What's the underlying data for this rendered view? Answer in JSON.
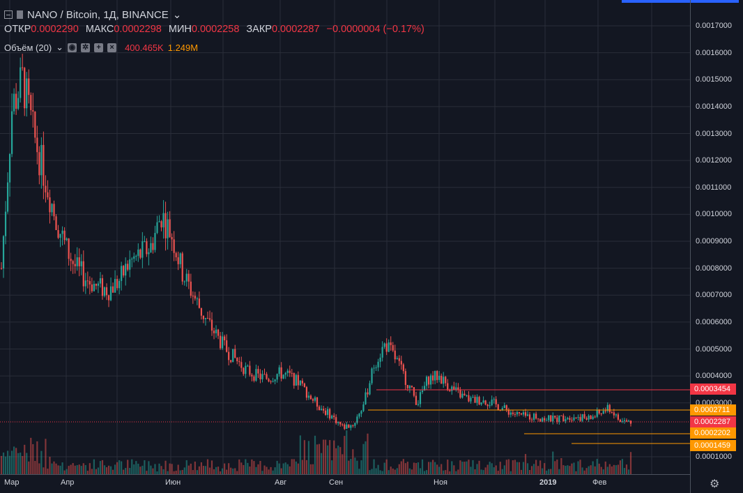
{
  "header": {
    "symbol": "NANO / Bitcoin, 1Д, BINANCE",
    "dropdown_icon": "chevron-down-icon"
  },
  "ohlc": {
    "open_label": "ОТКР",
    "open": "0.0002290",
    "high_label": "МАКС",
    "high": "0.0002298",
    "low_label": "МИН",
    "low": "0.0002258",
    "close_label": "ЗАКР",
    "close": "0.0002287",
    "change": "−0.0000004 (−0.17%)"
  },
  "volume": {
    "label": "Объём (20)",
    "value1": "400.465K",
    "value2": "1.249M"
  },
  "colors": {
    "up": "#26a69a",
    "down": "#ef5350",
    "bg": "#131722",
    "grid": "#2a2e39",
    "red_line": "#f23645",
    "orange_line": "#ff9800"
  },
  "y_axis": {
    "ticks": [
      "0.0017000",
      "0.0016000",
      "0.0015000",
      "0.0014000",
      "0.0013000",
      "0.0012000",
      "0.0011000",
      "0.0010000",
      "0.0009000",
      "0.0008000",
      "0.0007000",
      "0.0006000",
      "0.0005000",
      "0.0004000",
      "0.0003000",
      "0.0001000"
    ]
  },
  "x_axis": {
    "ticks": [
      "Мар",
      "Апр",
      "Июн",
      "Авг",
      "Сен",
      "Ноя",
      "2019",
      "Фев"
    ]
  },
  "price_labels": {
    "resistance": "0.0003454",
    "upper": "0.0002711",
    "last": "0.0002287",
    "support1": "0.0002202",
    "support2": "0.0001459"
  },
  "chart_data": {
    "type": "candlestick",
    "title": "NANO / Bitcoin, 1Д, BINANCE",
    "ylim": [
      6e-05,
      0.00177
    ],
    "y_tick_values": [
      0.0017,
      0.0016,
      0.0015,
      0.0014,
      0.0013,
      0.0012,
      0.0011,
      0.001,
      0.0009,
      0.0008,
      0.0007,
      0.0006,
      0.0005,
      0.0004,
      0.0003,
      0.0001
    ],
    "x_categories": [
      "Мар",
      "Апр",
      "Июн",
      "Авг",
      "Сен",
      "Ноя",
      "2019",
      "Фев"
    ],
    "close_path": [
      0.0008,
      0.0014,
      0.0015,
      0.0013,
      0.00115,
      0.001,
      0.00088,
      0.0008,
      0.00076,
      0.00073,
      0.00072,
      0.00075,
      0.00082,
      0.00085,
      0.00088,
      0.001,
      0.00092,
      0.00078,
      0.0007,
      0.00062,
      0.00056,
      0.0005,
      0.00046,
      0.00042,
      0.0004,
      0.00039,
      0.00041,
      0.0004,
      0.00037,
      0.00032,
      0.00028,
      0.00025,
      0.00021,
      0.00022,
      0.0003,
      0.00045,
      0.00052,
      0.00046,
      0.00038,
      0.0003,
      0.00039,
      0.0004,
      0.00036,
      0.00033,
      0.00031,
      0.00031,
      0.0003,
      0.00028,
      0.00026,
      0.00025,
      0.00025,
      0.00024,
      0.00024,
      0.00025,
      0.00025,
      0.00024,
      0.00026,
      0.00028,
      0.00023,
      0.00023
    ],
    "horizontal_levels": [
      {
        "value": 0.0003454,
        "color": "red"
      },
      {
        "value": 0.0002711,
        "color": "orange"
      },
      {
        "value": 0.0002287,
        "color": "red",
        "dotted": true
      },
      {
        "value": 0.0002202,
        "color": "orange"
      },
      {
        "value": 0.0001459,
        "color": "orange"
      }
    ]
  },
  "settings_icon": "gear-icon"
}
